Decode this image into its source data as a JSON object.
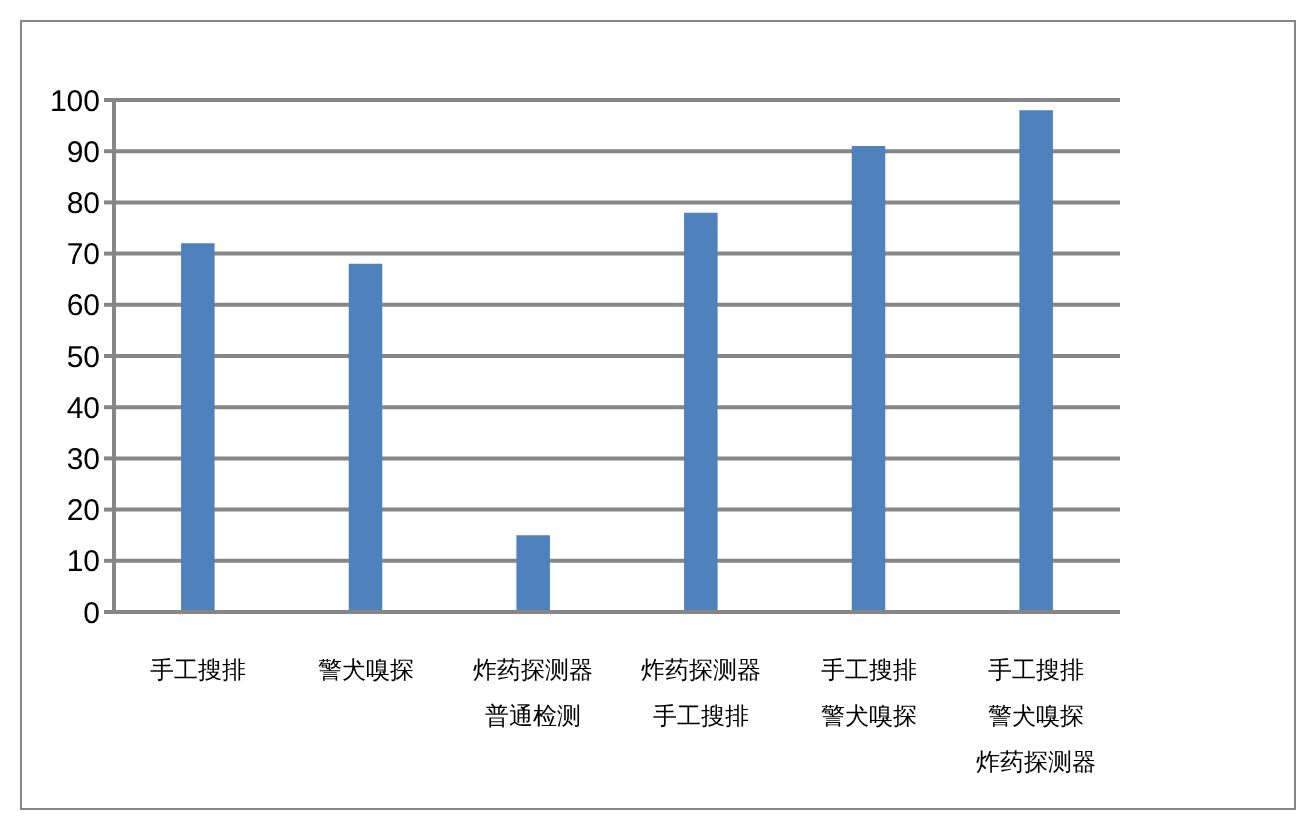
{
  "chart_data": {
    "type": "bar",
    "categories": [
      "手工搜排",
      "警犬嗅探",
      "炸药探测器普通检测",
      "炸药探测器手工搜排",
      "手工搜排警犬嗅探",
      "手工搜排警犬嗅探炸药探测器"
    ],
    "values": [
      72,
      68,
      15,
      78,
      91,
      98
    ],
    "color": "#4f81bd",
    "ylim": [
      0,
      100
    ],
    "yticks": [
      0,
      10,
      20,
      30,
      40,
      50,
      60,
      70,
      80,
      90,
      100
    ],
    "grid": "y"
  }
}
